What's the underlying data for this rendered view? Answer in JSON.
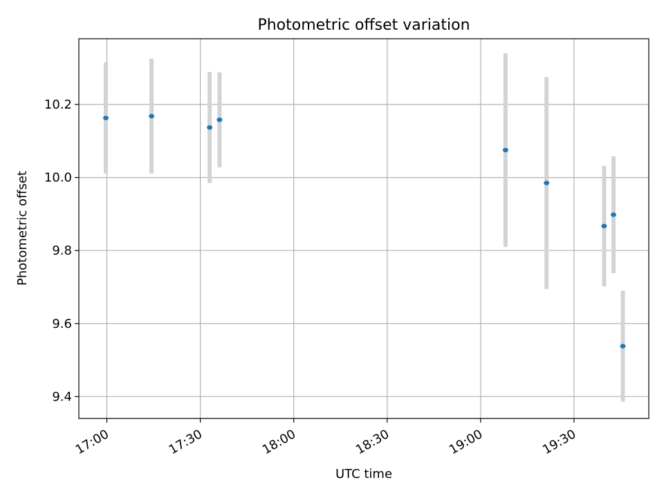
{
  "chart_data": {
    "type": "scatter",
    "title": "Photometric offset variation",
    "xlabel": "UTC time",
    "ylabel": "Photometric offset",
    "x_ticks": [
      "17:00",
      "17:30",
      "18:00",
      "18:30",
      "19:00",
      "19:30"
    ],
    "y_ticks": [
      "9.4",
      "9.6",
      "9.8",
      "10.0",
      "10.2"
    ],
    "xlim": [
      "16:51",
      "19:54"
    ],
    "ylim": [
      9.34,
      10.38
    ],
    "grid": true,
    "marker_color": "#1f77b4",
    "errorbar_color": "#d3d3d3",
    "points": [
      {
        "x": "16:59:40",
        "y": 10.163,
        "yerr": 0.152
      },
      {
        "x": "17:14:20",
        "y": 10.168,
        "yerr": 0.157
      },
      {
        "x": "17:33:00",
        "y": 10.137,
        "yerr": 0.152
      },
      {
        "x": "17:36:10",
        "y": 10.158,
        "yerr": 0.13
      },
      {
        "x": "19:08:00",
        "y": 10.075,
        "yerr": 0.265
      },
      {
        "x": "19:21:10",
        "y": 9.985,
        "yerr": 0.29
      },
      {
        "x": "19:39:40",
        "y": 9.867,
        "yerr": 0.165
      },
      {
        "x": "19:42:40",
        "y": 9.898,
        "yerr": 0.16
      },
      {
        "x": "19:45:40",
        "y": 9.538,
        "yerr": 0.152
      }
    ]
  }
}
